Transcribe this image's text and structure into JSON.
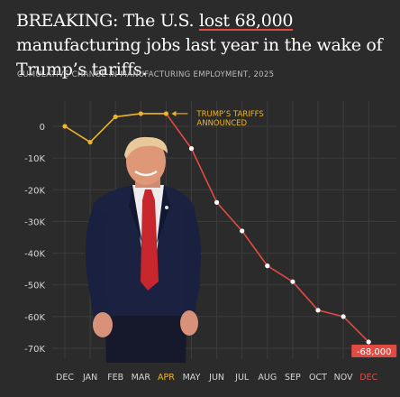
{
  "headline": {
    "part1": "BREAKING: The U.S. ",
    "highlight": "lost 68,000",
    "part2": " manufacturing jobs last year in the wake of Trump’s tariffs."
  },
  "subtitle": "CUMULATIVE CHANGE IN MANUFACTURING EMPLOYMENT, 2025",
  "colors": {
    "background": "#2b2b2b",
    "rising_line": "#f0b429",
    "falling_line": "#e14b43",
    "grid": "#3d3d3d"
  },
  "photo": {
    "subject": "man in dark suit and red tie",
    "icon": "person-photo-icon"
  },
  "chart_data": {
    "type": "line",
    "title": "CUMULATIVE CHANGE IN MANUFACTURING EMPLOYMENT, 2025",
    "categories": [
      "DEC",
      "JAN",
      "FEB",
      "MAR",
      "APR",
      "MAY",
      "JUN",
      "JUL",
      "AUG",
      "SEP",
      "OCT",
      "NOV",
      "DEC"
    ],
    "values": [
      0,
      -5000,
      3000,
      4000,
      4000,
      -7000,
      -24000,
      -33000,
      -44000,
      -49000,
      -58000,
      -60000,
      -68000
    ],
    "ytick_labels": [
      "0",
      "-10K",
      "-20K",
      "-30K",
      "-40K",
      "-50K",
      "-60K",
      "-70K"
    ],
    "ytick_values": [
      0,
      -10000,
      -20000,
      -30000,
      -40000,
      -50000,
      -60000,
      -70000
    ],
    "ylim": [
      -72000,
      6000
    ],
    "grid": true,
    "annotation": {
      "line1": "TRUMP’S TARIFFS",
      "line2": "ANNOUNCED",
      "at_category_index": 4
    },
    "end_label": "-68,000"
  }
}
